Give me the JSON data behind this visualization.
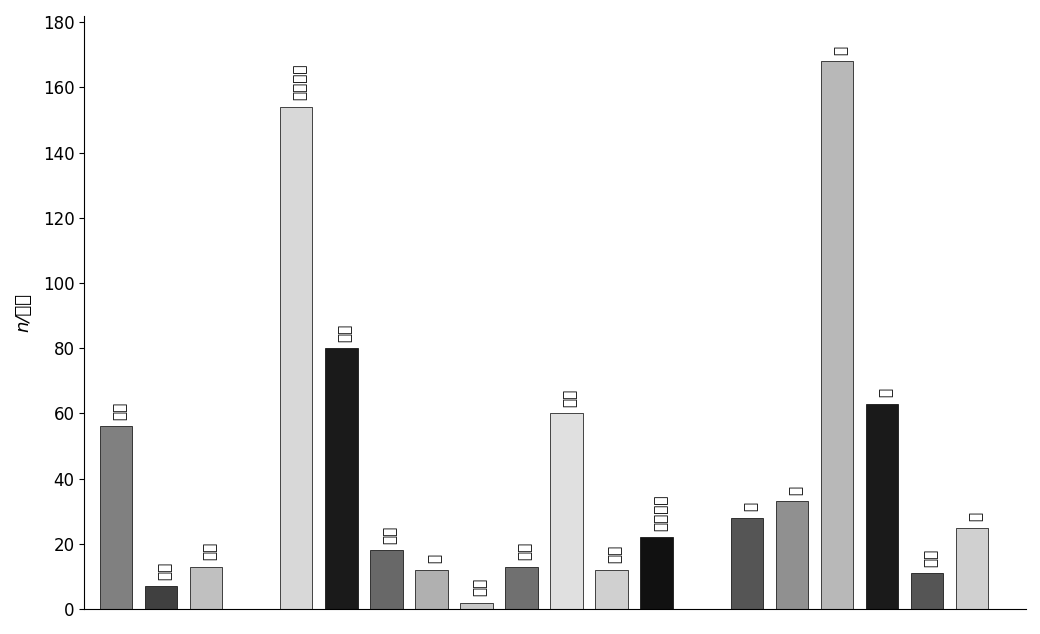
{
  "bars": [
    {
      "label": "气虚",
      "value": 56,
      "color": "#808080",
      "x": 1,
      "label_rot": 90
    },
    {
      "label": "阳虚",
      "value": 7,
      "color": "#404040",
      "x": 2,
      "label_rot": 90
    },
    {
      "label": "阴虚",
      "value": 13,
      "color": "#c0c0c0",
      "x": 3,
      "label_rot": 90
    },
    {
      "label": "痰（湿）",
      "value": 154,
      "color": "#d8d8d8",
      "x": 5,
      "label_rot": 0
    },
    {
      "label": "血瘀",
      "value": 80,
      "color": "#1a1a1a",
      "x": 6,
      "label_rot": 90
    },
    {
      "label": "血虚",
      "value": 18,
      "color": "#686868",
      "x": 7,
      "label_rot": 90
    },
    {
      "label": "寒",
      "value": 12,
      "color": "#b0b0b0",
      "x": 8,
      "label_rot": 0
    },
    {
      "label": "气滞",
      "value": 2,
      "color": "#c8c8c8",
      "x": 9,
      "label_rot": 90
    },
    {
      "label": "精亨",
      "value": 13,
      "color": "#707070",
      "x": 10,
      "label_rot": 90
    },
    {
      "label": "风动",
      "value": 60,
      "color": "#e0e0e0",
      "x": 11,
      "label_rot": 0
    },
    {
      "label": "阳居",
      "value": 12,
      "color": "#d0d0d0",
      "x": 12,
      "label_rot": 90
    },
    {
      "label": "热（火）",
      "value": 22,
      "color": "#111111",
      "x": 13,
      "label_rot": 90
    },
    {
      "label": "肾",
      "value": 28,
      "color": "#555555",
      "x": 15,
      "label_rot": 0
    },
    {
      "label": "肝",
      "value": 33,
      "color": "#909090",
      "x": 16,
      "label_rot": 0
    },
    {
      "label": "脾",
      "value": 168,
      "color": "#b8b8b8",
      "x": 17,
      "label_rot": 0
    },
    {
      "label": "心",
      "value": 63,
      "color": "#1a1a1a",
      "x": 18,
      "label_rot": 0
    },
    {
      "label": "脑髄",
      "value": 11,
      "color": "#555555",
      "x": 19,
      "label_rot": 90
    },
    {
      "label": "肺",
      "value": 25,
      "color": "#d0d0d0",
      "x": 20,
      "label_rot": 0
    }
  ],
  "ylabel": "n/例次",
  "ylim": [
    0,
    182
  ],
  "yticks": [
    0,
    20,
    40,
    60,
    80,
    100,
    120,
    140,
    160,
    180
  ],
  "background_color": "#ffffff",
  "bar_width": 0.72,
  "xlim": [
    0.3,
    21.2
  ]
}
